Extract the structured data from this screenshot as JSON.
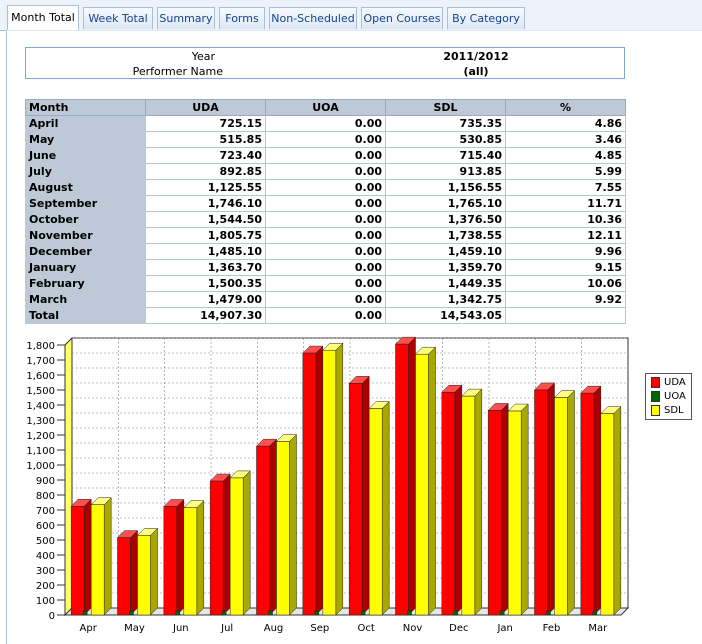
{
  "tabs": [
    {
      "label": "Month Total",
      "active": true
    },
    {
      "label": "Week Total",
      "active": false
    },
    {
      "label": "Summary",
      "active": false
    },
    {
      "label": "Forms",
      "active": false
    },
    {
      "label": "Non-Scheduled",
      "active": false
    },
    {
      "label": "Open Courses",
      "active": false
    },
    {
      "label": "By Category",
      "active": false
    }
  ],
  "filters": {
    "year_label": "Year",
    "year_value": "2011/2012",
    "performer_label": "Performer Name",
    "performer_value": "(all)"
  },
  "table": {
    "headers": [
      "Month",
      "UDA",
      "UOA",
      "SDL",
      "%"
    ],
    "rows": [
      [
        "April",
        "725.15",
        "0.00",
        "735.35",
        "4.86"
      ],
      [
        "May",
        "515.85",
        "0.00",
        "530.85",
        "3.46"
      ],
      [
        "June",
        "723.40",
        "0.00",
        "715.40",
        "4.85"
      ],
      [
        "July",
        "892.85",
        "0.00",
        "913.85",
        "5.99"
      ],
      [
        "August",
        "1,125.55",
        "0.00",
        "1,156.55",
        "7.55"
      ],
      [
        "September",
        "1,746.10",
        "0.00",
        "1,765.10",
        "11.71"
      ],
      [
        "October",
        "1,544.50",
        "0.00",
        "1,376.50",
        "10.36"
      ],
      [
        "November",
        "1,805.75",
        "0.00",
        "1,738.55",
        "12.11"
      ],
      [
        "December",
        "1,485.10",
        "0.00",
        "1,459.10",
        "9.96"
      ],
      [
        "January",
        "1,363.70",
        "0.00",
        "1,359.70",
        "9.15"
      ],
      [
        "February",
        "1,500.35",
        "0.00",
        "1,449.35",
        "10.06"
      ],
      [
        "March",
        "1,479.00",
        "0.00",
        "1,342.75",
        "9.92"
      ]
    ],
    "total": [
      "Total",
      "14,907.30",
      "0.00",
      "14,543.05",
      ""
    ]
  },
  "chart_data": {
    "type": "bar",
    "categories": [
      "Apr",
      "May",
      "Jun",
      "Jul",
      "Aug",
      "Sep",
      "Oct",
      "Nov",
      "Dec",
      "Jan",
      "Feb",
      "Mar"
    ],
    "series": [
      {
        "name": "UDA",
        "color": "#ff0000",
        "values": [
          725.15,
          515.85,
          723.4,
          892.85,
          1125.55,
          1746.1,
          1544.5,
          1805.75,
          1485.1,
          1363.7,
          1500.35,
          1479.0
        ]
      },
      {
        "name": "UOA",
        "color": "#006600",
        "values": [
          0,
          0,
          0,
          0,
          0,
          0,
          0,
          0,
          0,
          0,
          0,
          0
        ]
      },
      {
        "name": "SDL",
        "color": "#ffff00",
        "values": [
          735.35,
          530.85,
          715.4,
          913.85,
          1156.55,
          1765.1,
          1376.5,
          1738.55,
          1459.1,
          1359.7,
          1449.35,
          1342.75
        ]
      }
    ],
    "ylim": [
      0,
      1800
    ],
    "yticks": [
      "0",
      "100",
      "200",
      "300",
      "400",
      "500",
      "600",
      "700",
      "800",
      "900",
      "1,000",
      "1,100",
      "1,200",
      "1,300",
      "1,400",
      "1,500",
      "1,600",
      "1,700",
      "1,800"
    ],
    "grid": true,
    "legend": "right"
  }
}
